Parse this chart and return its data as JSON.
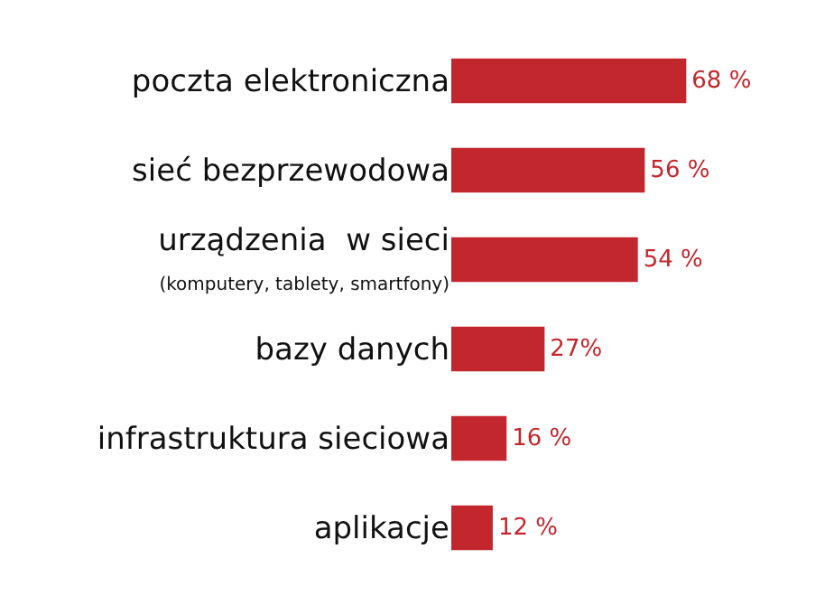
{
  "chart_data": {
    "type": "bar",
    "orientation": "horizontal",
    "categories": [
      "poczta elektroniczna",
      "sieć bezprzewodowa",
      "urządzenia  w sieci\n(komputery, tablety, smartfony)",
      "bazy danych",
      "infrastruktura sieciowa",
      "aplikacje"
    ],
    "values": [
      68,
      56,
      54,
      27,
      16,
      12
    ],
    "value_labels": [
      "68 %",
      "56 %",
      "54 %",
      "27%",
      "16 %",
      "12 %"
    ],
    "color": "#c1272d"
  }
}
